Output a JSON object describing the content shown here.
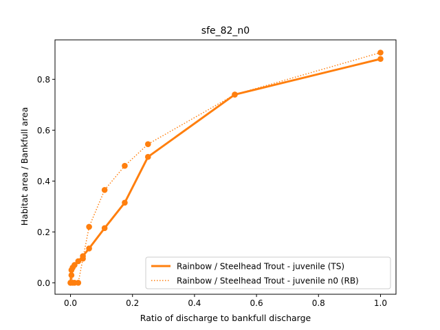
{
  "chart_data": {
    "type": "line",
    "title": "sfe_82_n0",
    "xlabel": "Ratio of discharge to bankfull discharge",
    "ylabel": "Habitat area / Bankfull area",
    "xlim": [
      -0.05,
      1.05
    ],
    "ylim": [
      -0.045,
      0.955
    ],
    "xticks": [
      0.0,
      0.2,
      0.4,
      0.6,
      0.8,
      1.0
    ],
    "xtick_labels": [
      "0.0",
      "0.2",
      "0.4",
      "0.6",
      "0.8",
      "1.0"
    ],
    "yticks": [
      0.0,
      0.2,
      0.4,
      0.6,
      0.8
    ],
    "ytick_labels": [
      "0.0",
      "0.2",
      "0.4",
      "0.6",
      "0.8"
    ],
    "grid": false,
    "legend_position": "lower-right",
    "color": "#ff7f0e",
    "series": [
      {
        "name": "Rainbow / Steelhead Trout - juvenile (TS)",
        "linestyle": "solid",
        "x": [
          0.0,
          0.003,
          0.007,
          0.013,
          0.025,
          0.04,
          0.06,
          0.11,
          0.175,
          0.25,
          0.53,
          1.0
        ],
        "y": [
          0.0,
          0.05,
          0.06,
          0.07,
          0.085,
          0.105,
          0.135,
          0.215,
          0.315,
          0.495,
          0.74,
          0.88
        ]
      },
      {
        "name": "Rainbow / Steelhead Trout - juvenile n0 (RB)",
        "linestyle": "dotted",
        "x": [
          0.0,
          0.003,
          0.007,
          0.013,
          0.025,
          0.04,
          0.06,
          0.11,
          0.175,
          0.25,
          0.53,
          1.0
        ],
        "y": [
          0.0,
          0.03,
          0.0,
          0.0,
          0.0,
          0.095,
          0.22,
          0.365,
          0.46,
          0.545,
          0.74,
          0.905
        ]
      }
    ]
  }
}
